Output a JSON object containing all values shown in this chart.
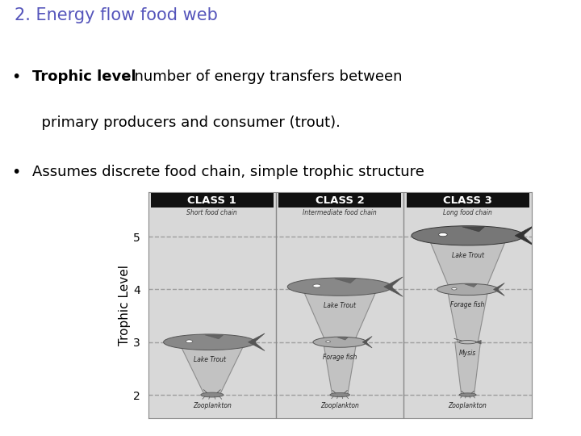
{
  "title": "2. Energy flow food web",
  "title_color": "#5555bb",
  "title_fontsize": 15,
  "bullet1_bold": "Trophic level",
  "bullet1_rest": " – number of energy transfers between",
  "bullet1_rest2": "  primary producers and consumer (trout).",
  "bullet2": "Assumes discrete food chain, simple trophic structure",
  "bullet_fontsize": 13,
  "bg_color": "#ffffff",
  "panel_bg": "#cccccc",
  "inner_bg": "#d8d8d8",
  "class_labels": [
    "CLASS 1",
    "CLASS 2",
    "CLASS 3"
  ],
  "class_subtitles": [
    "Short food chain",
    "Intermediate food chain",
    "Long food chain"
  ],
  "ylabel": "Trophic Level",
  "yticks": [
    2,
    3,
    4,
    5
  ],
  "dashed_line_color": "#999999",
  "header_bg": "#111111",
  "header_text_color": "#ffffff",
  "funnel_color": "#bbbbbb",
  "funnel_edge": "#777777",
  "fish_color": "#888888",
  "fish_dark": "#555555",
  "bug_color": "#999999"
}
